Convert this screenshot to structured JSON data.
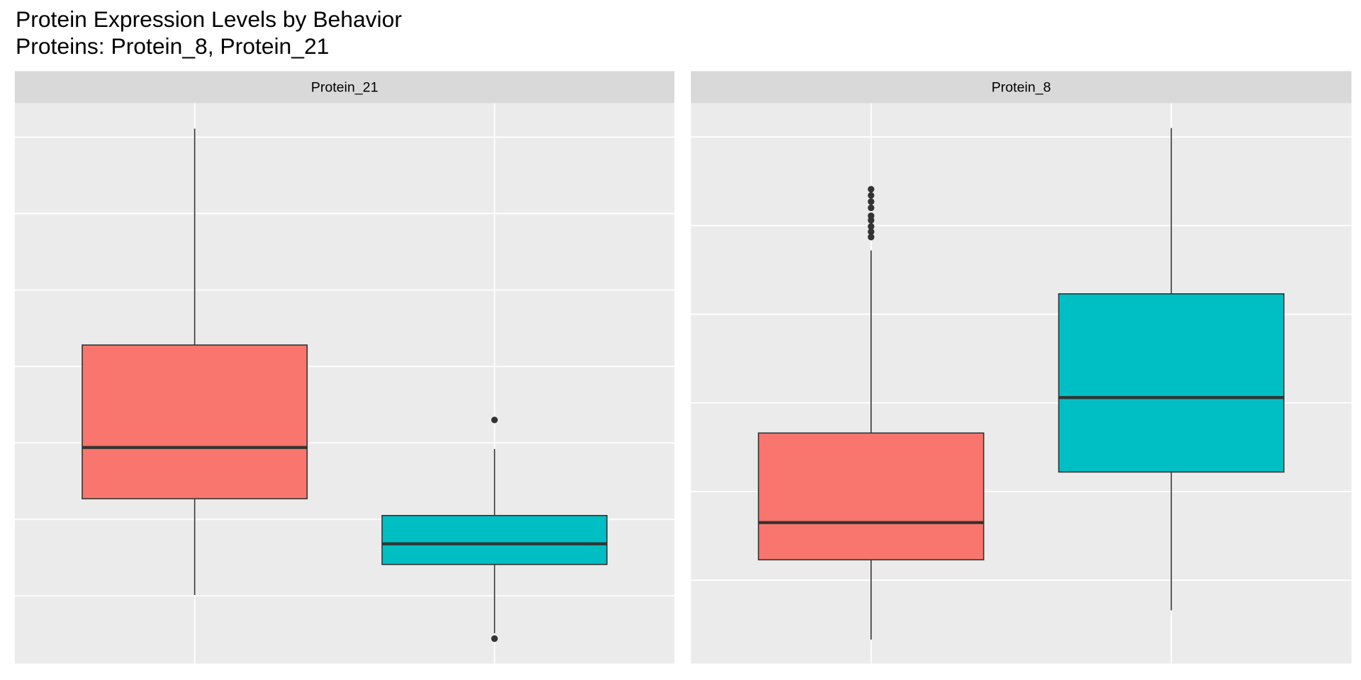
{
  "title": "Protein Expression Levels by Behavior",
  "subtitle": "Proteins:  Protein_8, Protein_21",
  "chart_data": [
    {
      "type": "box",
      "title": "Protein_21",
      "categories": [
        null,
        null
      ],
      "ylim": [
        -0.886,
        6.443
      ],
      "yticks": [
        0,
        1,
        2,
        3,
        4,
        5,
        6
      ],
      "grid": true,
      "series": [
        {
          "color": "#f8766d",
          "whislo": 0.01,
          "q1": 1.27,
          "med": 1.94,
          "q3": 3.28,
          "whishi": 6.11,
          "outliers": []
        },
        {
          "color": "#00bfc4",
          "whislo": -0.49,
          "q1": 0.41,
          "med": 0.68,
          "q3": 1.05,
          "whishi": 1.92,
          "outliers": [
            2.3,
            -0.56
          ]
        }
      ]
    },
    {
      "type": "box",
      "title": "Protein_8",
      "categories": [
        null,
        null
      ],
      "ylim": [
        -0.94,
        5.38
      ],
      "yticks": [
        0,
        1,
        2,
        3,
        4,
        5
      ],
      "grid": true,
      "series": [
        {
          "color": "#f8766d",
          "whislo": -0.67,
          "q1": 0.23,
          "med": 0.65,
          "q3": 1.66,
          "whishi": 3.72,
          "outliers": [
            4.41,
            4.34,
            4.27,
            4.2,
            4.11,
            4.06,
            3.99,
            3.93,
            3.87
          ]
        },
        {
          "color": "#00bfc4",
          "whislo": -0.34,
          "q1": 1.22,
          "med": 2.06,
          "q3": 3.23,
          "whishi": 5.1,
          "outliers": []
        }
      ]
    }
  ]
}
